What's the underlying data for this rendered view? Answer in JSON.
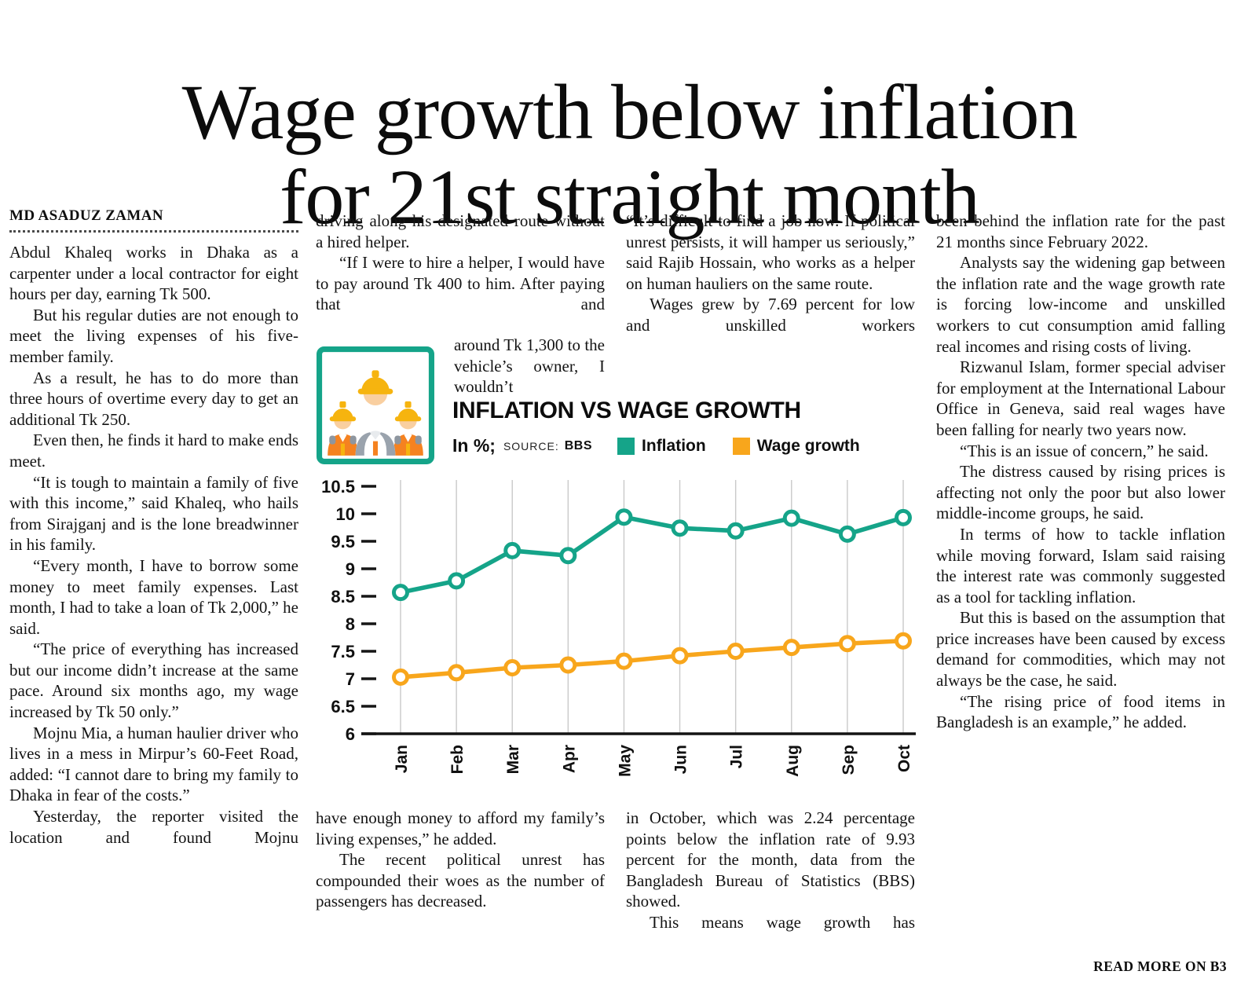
{
  "masthead": {
    "headline": "Wage growth below inflation\nfor 21st straight month",
    "byline": "MD ASADUZ ZAMAN",
    "read_more": "READ MORE ON B3"
  },
  "article": {
    "col1": [
      "Abdul Khaleq works in Dhaka as a carpenter under a local contractor for eight hours per day, earning Tk 500.",
      "But his regular duties are not enough to meet the living expenses of his five-member family.",
      "As a result, he has to do more than three hours of overtime every day to get an additional Tk 250.",
      "Even then, he finds it hard to make ends meet.",
      "“It is tough to maintain a family of five with this income,” said Khaleq, who hails from Sirajganj and is the lone breadwinner in his family.",
      "“Every month, I have to borrow some money to meet family expenses. Last month, I had to take a loan of Tk 2,000,” he said.",
      "“The price of everything has increased but our income didn’t increase at the same pace. Around six months ago, my wage increased by Tk 50 only.”",
      "Mojnu Mia, a human haulier driver who lives in a mess in Mirpur’s 60-Feet Road, added: “I cannot dare to bring my family to Dhaka in fear of the costs.”",
      "Yesterday, the reporter visited the location and found Mojnu"
    ],
    "col2_top": [
      "driving along his designated route without a hired helper.",
      "“If I were to hire a helper, I would have to pay around Tk 400 to him. After paying that and"
    ],
    "col2_beside_icon": "around Tk 1,300 to the vehicle’s owner, I wouldn’t",
    "col2_bottom": [
      "have enough money to afford my family’s living expenses,” he added.",
      "The recent political unrest has compounded their woes as the number of passengers has decreased."
    ],
    "col3_top": [
      "“It’s difficult to find a job now. If political unrest persists, it will hamper us seriously,” said Rajib Hossain, who works as a helper on human hauliers on the same route.",
      "Wages grew by 7.69 percent for low and unskilled workers"
    ],
    "col3_bottom": [
      "in October, which was 2.24 percentage points below the inflation rate of 9.93 percent for the month, data from the Bangladesh Bureau of Statistics (BBS) showed.",
      "This means wage growth has"
    ],
    "col4": [
      "been behind the inflation rate for the past 21 months since February 2022.",
      "Analysts say the widening gap between the inflation rate and the wage growth rate is forcing low-income and unskilled workers to cut consumption amid falling real incomes and rising costs of living.",
      "Rizwanul Islam, former special adviser for employment at the International Labour Office in Geneva, said real wages have been falling for nearly two years now.",
      "“This is an issue of concern,” he said.",
      "The distress caused by rising prices is affecting not only the poor but also lower middle-income groups, he said.",
      "In terms of how to tackle inflation while moving forward, Islam said raising the interest rate was commonly suggested as a tool for tackling inflation.",
      "But this is based on the assumption that price increases have been caused by excess demand for commodities, which may not always be the case, he said.",
      "“The rising price of food items in Bangladesh is an example,” he added."
    ]
  },
  "graphic": {
    "icon": "construction-workers",
    "border_color": "#15A489"
  },
  "chart_data": {
    "type": "line",
    "title": "INFLATION VS WAGE GROWTH",
    "unit_note": "In %;",
    "source_label": "SOURCE:",
    "source": "BBS",
    "categories": [
      "Jan",
      "Feb",
      "Mar",
      "Apr",
      "May",
      "Jun",
      "Jul",
      "Aug",
      "Sep",
      "Oct"
    ],
    "series": [
      {
        "name": "Inflation",
        "color": "#15A489",
        "values": [
          8.57,
          8.78,
          9.33,
          9.24,
          9.94,
          9.74,
          9.69,
          9.92,
          9.63,
          9.93
        ]
      },
      {
        "name": "Wage growth",
        "color": "#F8A61C",
        "values": [
          7.03,
          7.11,
          7.2,
          7.25,
          7.32,
          7.42,
          7.5,
          7.57,
          7.64,
          7.69
        ]
      }
    ],
    "ylim": [
      6,
      10.5
    ],
    "ytick_step": 0.5,
    "xlabel": "",
    "ylabel": "",
    "grid": "vertical",
    "legend_position": "top"
  }
}
